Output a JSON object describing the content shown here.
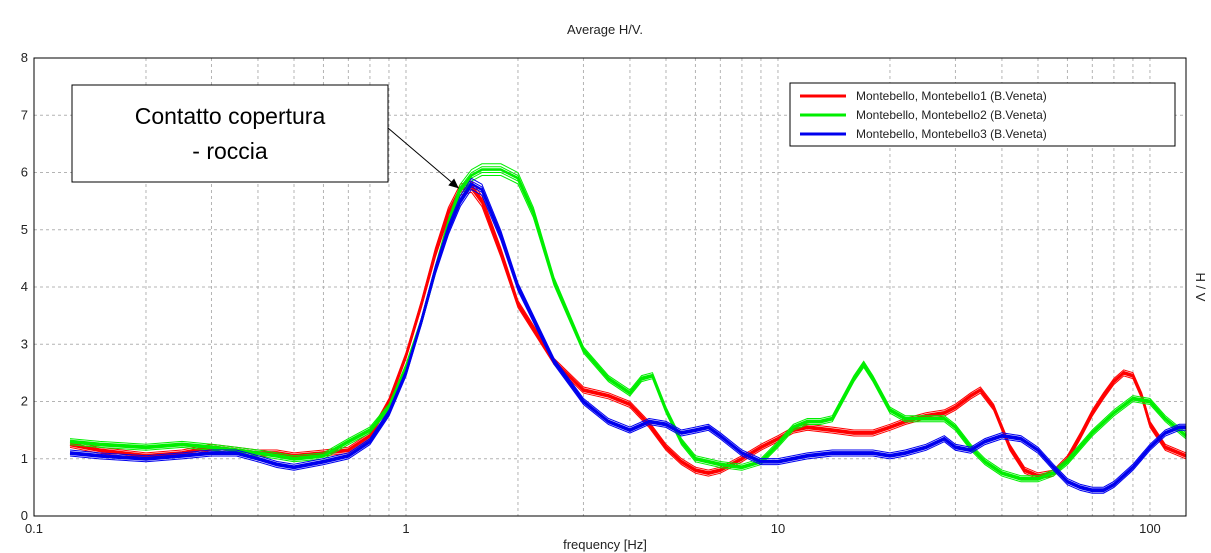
{
  "chart_data": {
    "type": "line",
    "title": "Average H/V.",
    "xlabel": "frequency [Hz]",
    "ylabel": "H / V",
    "xscale": "log",
    "xlim": [
      0.1,
      125
    ],
    "ylim": [
      0,
      8
    ],
    "x_ticks": [
      0.1,
      1,
      10,
      100
    ],
    "x_tick_labels": [
      "0.1",
      "1",
      "10",
      "100"
    ],
    "y_ticks": [
      0,
      1,
      2,
      3,
      4,
      5,
      6,
      7,
      8
    ],
    "y_tick_labels": [
      "0",
      "1",
      "2",
      "3",
      "4",
      "5",
      "6",
      "7",
      "8"
    ],
    "grid": true,
    "legend_position": "top-right",
    "annotation": {
      "line1": "Contatto copertura",
      "line2": "- roccia",
      "target_x": 1.4,
      "target_y": 5.7
    },
    "series": [
      {
        "name": "Montebello, Montebello1 (B.Veneta)",
        "color": "#ff0000",
        "x": [
          0.125,
          0.15,
          0.2,
          0.25,
          0.3,
          0.35,
          0.4,
          0.45,
          0.5,
          0.6,
          0.7,
          0.8,
          0.9,
          1.0,
          1.1,
          1.2,
          1.3,
          1.4,
          1.5,
          1.6,
          1.8,
          2.0,
          2.5,
          3.0,
          3.5,
          4.0,
          4.5,
          5.0,
          5.5,
          6.0,
          6.5,
          7.0,
          8.0,
          9.0,
          10,
          11,
          12,
          14,
          16,
          18,
          20,
          22,
          25,
          28,
          30,
          33,
          35,
          38,
          42,
          46,
          50,
          55,
          60,
          65,
          70,
          75,
          80,
          85,
          90,
          95,
          100,
          110,
          125
        ],
        "y": [
          1.25,
          1.15,
          1.05,
          1.1,
          1.2,
          1.15,
          1.1,
          1.1,
          1.05,
          1.1,
          1.15,
          1.4,
          2.0,
          2.8,
          3.7,
          4.6,
          5.3,
          5.7,
          5.75,
          5.5,
          4.6,
          3.7,
          2.7,
          2.2,
          2.1,
          1.95,
          1.6,
          1.2,
          0.95,
          0.8,
          0.75,
          0.8,
          1.0,
          1.2,
          1.35,
          1.5,
          1.55,
          1.5,
          1.45,
          1.45,
          1.55,
          1.65,
          1.75,
          1.8,
          1.9,
          2.1,
          2.2,
          1.9,
          1.2,
          0.8,
          0.7,
          0.75,
          1.0,
          1.4,
          1.8,
          2.1,
          2.35,
          2.5,
          2.45,
          2.1,
          1.6,
          1.2,
          1.05
        ]
      },
      {
        "name": "Montebello, Montebello2 (B.Veneta)",
        "color": "#00ee00",
        "x": [
          0.125,
          0.15,
          0.2,
          0.25,
          0.3,
          0.35,
          0.4,
          0.45,
          0.5,
          0.6,
          0.7,
          0.8,
          0.9,
          1.0,
          1.1,
          1.2,
          1.3,
          1.4,
          1.5,
          1.6,
          1.8,
          2.0,
          2.2,
          2.5,
          3.0,
          3.5,
          4.0,
          4.3,
          4.6,
          5.0,
          5.5,
          6.0,
          7.0,
          8.0,
          9.0,
          10,
          11,
          12,
          13,
          14,
          16,
          17,
          18,
          20,
          22,
          25,
          28,
          30,
          33,
          36,
          40,
          45,
          50,
          55,
          60,
          70,
          80,
          90,
          100,
          110,
          125
        ],
        "y": [
          1.3,
          1.25,
          1.2,
          1.25,
          1.2,
          1.15,
          1.1,
          1.05,
          1.0,
          1.05,
          1.3,
          1.5,
          1.9,
          2.6,
          3.4,
          4.3,
          5.1,
          5.7,
          5.95,
          6.05,
          6.05,
          5.9,
          5.3,
          4.1,
          2.9,
          2.4,
          2.15,
          2.4,
          2.45,
          1.85,
          1.3,
          1.0,
          0.9,
          0.85,
          0.95,
          1.25,
          1.55,
          1.65,
          1.65,
          1.7,
          2.4,
          2.65,
          2.4,
          1.85,
          1.7,
          1.7,
          1.7,
          1.55,
          1.2,
          0.95,
          0.75,
          0.65,
          0.65,
          0.75,
          0.95,
          1.45,
          1.8,
          2.05,
          2.0,
          1.7,
          1.4
        ]
      },
      {
        "name": "Montebello, Montebello3 (B.Veneta)",
        "color": "#0000ee",
        "x": [
          0.125,
          0.15,
          0.2,
          0.25,
          0.3,
          0.35,
          0.4,
          0.45,
          0.5,
          0.6,
          0.7,
          0.8,
          0.9,
          1.0,
          1.1,
          1.2,
          1.3,
          1.4,
          1.5,
          1.6,
          1.8,
          2.0,
          2.5,
          3.0,
          3.5,
          4.0,
          4.5,
          5.0,
          5.5,
          6.0,
          6.5,
          7.0,
          8.0,
          9.0,
          10,
          12,
          14,
          16,
          18,
          20,
          22,
          25,
          28,
          30,
          33,
          36,
          40,
          45,
          50,
          55,
          60,
          65,
          70,
          75,
          80,
          90,
          100,
          110,
          120,
          125
        ],
        "y": [
          1.1,
          1.05,
          1.0,
          1.05,
          1.1,
          1.1,
          1.0,
          0.9,
          0.85,
          0.95,
          1.05,
          1.3,
          1.8,
          2.5,
          3.4,
          4.3,
          5.0,
          5.5,
          5.8,
          5.7,
          4.9,
          4.0,
          2.7,
          2.0,
          1.65,
          1.5,
          1.65,
          1.6,
          1.45,
          1.5,
          1.55,
          1.4,
          1.1,
          0.95,
          0.95,
          1.05,
          1.1,
          1.1,
          1.1,
          1.05,
          1.1,
          1.2,
          1.35,
          1.2,
          1.15,
          1.3,
          1.4,
          1.35,
          1.15,
          0.85,
          0.6,
          0.5,
          0.45,
          0.45,
          0.55,
          0.85,
          1.2,
          1.45,
          1.55,
          1.55
        ]
      }
    ]
  }
}
